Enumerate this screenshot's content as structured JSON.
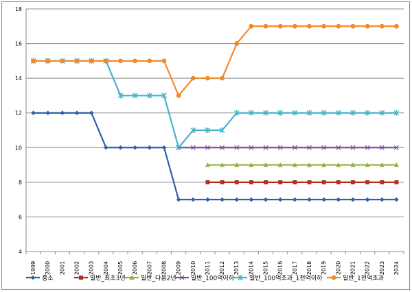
{
  "chart_data": {
    "type": "line",
    "title": "",
    "xlabel": "",
    "ylabel": "",
    "ylim": [
      4,
      18
    ],
    "yticks": [
      4,
      6,
      8,
      10,
      12,
      14,
      16,
      18
    ],
    "grid": "horizontal",
    "legend_position": "bottom",
    "x": [
      "1999",
      "2000",
      "2001",
      "2002",
      "2003",
      "2004",
      "2005",
      "2006",
      "2007",
      "2008",
      "2009",
      "2010",
      "2011",
      "2012",
      "2013",
      "2014",
      "2015",
      "2016",
      "2017",
      "2018",
      "2019",
      "2020",
      "2021",
      "2022",
      "2023",
      "2024"
    ],
    "series": [
      {
        "name": "중소",
        "color": "#2e5fa8",
        "marker": "diamond",
        "values": [
          12,
          12,
          12,
          12,
          12,
          10,
          10,
          10,
          10,
          10,
          7,
          7,
          7,
          7,
          7,
          7,
          7,
          7,
          7,
          7,
          7,
          7,
          7,
          7,
          7,
          7
        ]
      },
      {
        "name": "일반_최초3년",
        "color": "#b03028",
        "marker": "square",
        "values": [
          null,
          null,
          null,
          null,
          null,
          null,
          null,
          null,
          null,
          null,
          null,
          null,
          8,
          8,
          8,
          8,
          8,
          8,
          8,
          8,
          8,
          8,
          8,
          8,
          8,
          8
        ]
      },
      {
        "name": "일반_다음2년",
        "color": "#8fb23e",
        "marker": "triangle",
        "values": [
          null,
          null,
          null,
          null,
          null,
          null,
          null,
          null,
          null,
          null,
          null,
          null,
          9,
          9,
          9,
          9,
          9,
          9,
          9,
          9,
          9,
          9,
          9,
          9,
          9,
          9
        ]
      },
      {
        "name": "일반_100억이하",
        "color": "#7a4f9e",
        "marker": "x",
        "values": [
          null,
          null,
          null,
          null,
          null,
          null,
          null,
          null,
          null,
          null,
          10,
          10,
          10,
          10,
          10,
          10,
          10,
          10,
          10,
          10,
          10,
          10,
          10,
          10,
          10,
          10
        ]
      },
      {
        "name": "일반_100억조과_1천억이하",
        "color": "#45b3c9",
        "marker": "star",
        "values": [
          15,
          15,
          15,
          15,
          15,
          15,
          13,
          13,
          13,
          13,
          10,
          11,
          11,
          11,
          12,
          12,
          12,
          12,
          12,
          12,
          12,
          12,
          12,
          12,
          12,
          12
        ]
      },
      {
        "name": "일반_1천억조과",
        "color": "#f08a2a",
        "marker": "circle",
        "values": [
          15,
          15,
          15,
          15,
          15,
          15,
          15,
          15,
          15,
          15,
          13,
          14,
          14,
          14,
          16,
          17,
          17,
          17,
          17,
          17,
          17,
          17,
          17,
          17,
          17,
          17
        ]
      }
    ]
  }
}
